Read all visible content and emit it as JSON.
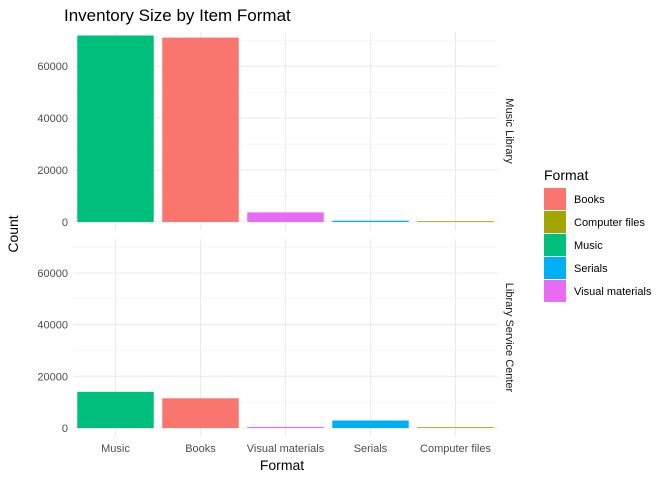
{
  "chart_data": {
    "type": "bar",
    "title": "Inventory Size by Item Format",
    "xlabel": "Format",
    "ylabel": "Count",
    "ylim": [
      0,
      72000
    ],
    "y_ticks": [
      0,
      20000,
      40000,
      60000
    ],
    "grid": true,
    "categories": [
      "Music",
      "Books",
      "Visual materials",
      "Serials",
      "Computer files"
    ],
    "facets": [
      {
        "label": "Music Library",
        "values": [
          71800,
          71000,
          3700,
          500,
          100
        ]
      },
      {
        "label": "Library Service Center",
        "values": [
          14000,
          11500,
          400,
          2900,
          50
        ]
      }
    ],
    "legend": {
      "title": "Format",
      "placement": "right",
      "items": [
        {
          "label": "Books",
          "color": "#F8766D"
        },
        {
          "label": "Computer files",
          "color": "#A3A500"
        },
        {
          "label": "Music",
          "color": "#00BF7D"
        },
        {
          "label": "Serials",
          "color": "#00B0F6"
        },
        {
          "label": "Visual materials",
          "color": "#E76BF3"
        }
      ]
    }
  }
}
